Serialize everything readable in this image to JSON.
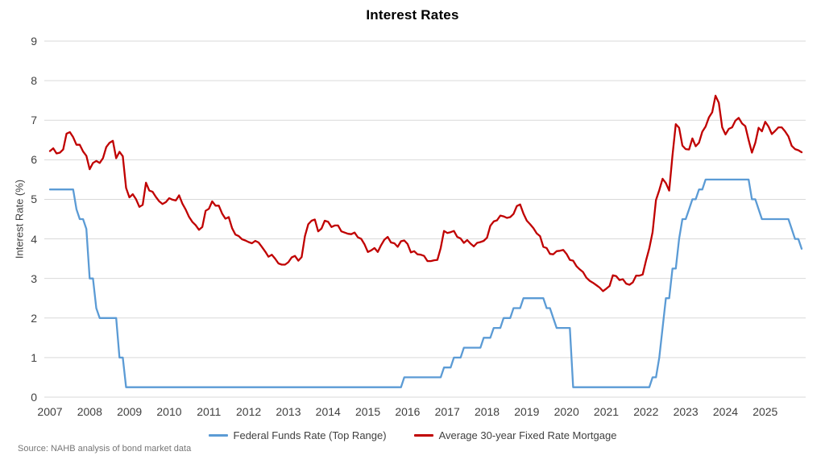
{
  "source": "Source: NAHB analysis of bond market data",
  "chart_data": {
    "type": "line",
    "title": "Interest Rates",
    "xlabel": "",
    "ylabel": "Interest Rate (%)",
    "ylim": [
      0,
      9
    ],
    "y_ticks": [
      0,
      1,
      2,
      3,
      4,
      5,
      6,
      7,
      8,
      9
    ],
    "x_tick_labels": [
      "2007",
      "2008",
      "2009",
      "2010",
      "2011",
      "2012",
      "2013",
      "2014",
      "2015",
      "2016",
      "2017",
      "2018",
      "2019",
      "2020",
      "2021",
      "2022",
      "2023",
      "2024",
      "2025"
    ],
    "x_start": "2007-01",
    "x_end": "2025-12",
    "x_frequency": "monthly",
    "grid": "horizontal",
    "gridline_color": "#D9D9D9",
    "axis_label_color": "#404040",
    "legend_position": "bottom",
    "series": [
      {
        "name": "Federal Funds Rate (Top Range)",
        "color": "#5B9BD5",
        "values": [
          5.25,
          5.25,
          5.25,
          5.25,
          5.25,
          5.25,
          5.25,
          5.25,
          4.75,
          4.5,
          4.5,
          4.25,
          3,
          3,
          2.25,
          2,
          2,
          2,
          2,
          2,
          2,
          1,
          1,
          0.25,
          0.25,
          0.25,
          0.25,
          0.25,
          0.25,
          0.25,
          0.25,
          0.25,
          0.25,
          0.25,
          0.25,
          0.25,
          0.25,
          0.25,
          0.25,
          0.25,
          0.25,
          0.25,
          0.25,
          0.25,
          0.25,
          0.25,
          0.25,
          0.25,
          0.25,
          0.25,
          0.25,
          0.25,
          0.25,
          0.25,
          0.25,
          0.25,
          0.25,
          0.25,
          0.25,
          0.25,
          0.25,
          0.25,
          0.25,
          0.25,
          0.25,
          0.25,
          0.25,
          0.25,
          0.25,
          0.25,
          0.25,
          0.25,
          0.25,
          0.25,
          0.25,
          0.25,
          0.25,
          0.25,
          0.25,
          0.25,
          0.25,
          0.25,
          0.25,
          0.25,
          0.25,
          0.25,
          0.25,
          0.25,
          0.25,
          0.25,
          0.25,
          0.25,
          0.25,
          0.25,
          0.25,
          0.25,
          0.25,
          0.25,
          0.25,
          0.25,
          0.25,
          0.25,
          0.25,
          0.25,
          0.25,
          0.25,
          0.25,
          0.5,
          0.5,
          0.5,
          0.5,
          0.5,
          0.5,
          0.5,
          0.5,
          0.5,
          0.5,
          0.5,
          0.5,
          0.75,
          0.75,
          0.75,
          1,
          1,
          1,
          1.25,
          1.25,
          1.25,
          1.25,
          1.25,
          1.25,
          1.5,
          1.5,
          1.5,
          1.75,
          1.75,
          1.75,
          2,
          2,
          2,
          2.25,
          2.25,
          2.25,
          2.5,
          2.5,
          2.5,
          2.5,
          2.5,
          2.5,
          2.5,
          2.25,
          2.25,
          2,
          1.75,
          1.75,
          1.75,
          1.75,
          1.75,
          0.25,
          0.25,
          0.25,
          0.25,
          0.25,
          0.25,
          0.25,
          0.25,
          0.25,
          0.25,
          0.25,
          0.25,
          0.25,
          0.25,
          0.25,
          0.25,
          0.25,
          0.25,
          0.25,
          0.25,
          0.25,
          0.25,
          0.25,
          0.25,
          0.5,
          0.5,
          1,
          1.75,
          2.5,
          2.5,
          3.25,
          3.25,
          4,
          4.5,
          4.5,
          4.75,
          5,
          5,
          5.25,
          5.25,
          5.5,
          5.5,
          5.5,
          5.5,
          5.5,
          5.5,
          5.5,
          5.5,
          5.5,
          5.5,
          5.5,
          5.5,
          5.5,
          5.5,
          5,
          5,
          4.75,
          4.5,
          4.5,
          4.5,
          4.5,
          4.5,
          4.5,
          4.5,
          4.5,
          4.5,
          4.25,
          4,
          4,
          3.75
        ]
      },
      {
        "name": "Average 30-year Fixed Rate Mortgage",
        "color": "#C00000",
        "values": [
          6.22,
          6.29,
          6.16,
          6.18,
          6.26,
          6.66,
          6.7,
          6.57,
          6.38,
          6.38,
          6.21,
          6.1,
          5.76,
          5.92,
          5.97,
          5.92,
          6.04,
          6.32,
          6.43,
          6.48,
          6.04,
          6.2,
          6.09,
          5.29,
          5.05,
          5.13,
          5,
          4.81,
          4.86,
          5.42,
          5.22,
          5.19,
          5.06,
          4.95,
          4.88,
          4.93,
          5.03,
          4.99,
          4.97,
          5.1,
          4.89,
          4.74,
          4.56,
          4.43,
          4.35,
          4.23,
          4.3,
          4.71,
          4.76,
          4.95,
          4.84,
          4.84,
          4.64,
          4.51,
          4.55,
          4.27,
          4.11,
          4.07,
          3.99,
          3.96,
          3.92,
          3.89,
          3.95,
          3.91,
          3.8,
          3.68,
          3.55,
          3.6,
          3.5,
          3.38,
          3.35,
          3.35,
          3.41,
          3.53,
          3.57,
          3.45,
          3.54,
          4.07,
          4.37,
          4.46,
          4.49,
          4.19,
          4.26,
          4.46,
          4.43,
          4.3,
          4.34,
          4.34,
          4.19,
          4.16,
          4.13,
          4.12,
          4.16,
          4.04,
          4,
          3.86,
          3.67,
          3.71,
          3.77,
          3.67,
          3.84,
          3.98,
          4.05,
          3.91,
          3.89,
          3.8,
          3.94,
          3.96,
          3.87,
          3.66,
          3.69,
          3.61,
          3.6,
          3.57,
          3.44,
          3.44,
          3.46,
          3.47,
          3.77,
          4.2,
          4.15,
          4.17,
          4.2,
          4.05,
          4.01,
          3.9,
          3.97,
          3.88,
          3.81,
          3.9,
          3.92,
          3.95,
          4.03,
          4.33,
          4.44,
          4.47,
          4.59,
          4.57,
          4.53,
          4.55,
          4.63,
          4.83,
          4.87,
          4.64,
          4.46,
          4.37,
          4.27,
          4.14,
          4.07,
          3.8,
          3.77,
          3.62,
          3.61,
          3.69,
          3.7,
          3.72,
          3.62,
          3.47,
          3.45,
          3.31,
          3.23,
          3.16,
          3.02,
          2.94,
          2.89,
          2.83,
          2.77,
          2.68,
          2.74,
          2.81,
          3.08,
          3.06,
          2.96,
          2.98,
          2.87,
          2.84,
          2.9,
          3.07,
          3.07,
          3.1,
          3.45,
          3.76,
          4.17,
          4.98,
          5.23,
          5.52,
          5.41,
          5.22,
          6.11,
          6.9,
          6.81,
          6.36,
          6.27,
          6.26,
          6.54,
          6.34,
          6.43,
          6.71,
          6.84,
          7.07,
          7.2,
          7.62,
          7.44,
          6.82,
          6.64,
          6.78,
          6.82,
          6.99,
          7.06,
          6.92,
          6.85,
          6.5,
          6.18,
          6.43,
          6.81,
          6.72,
          6.96,
          6.84,
          6.65,
          6.73,
          6.82,
          6.82,
          6.72,
          6.59,
          6.35,
          6.27,
          6.24,
          6.19
        ]
      }
    ]
  }
}
